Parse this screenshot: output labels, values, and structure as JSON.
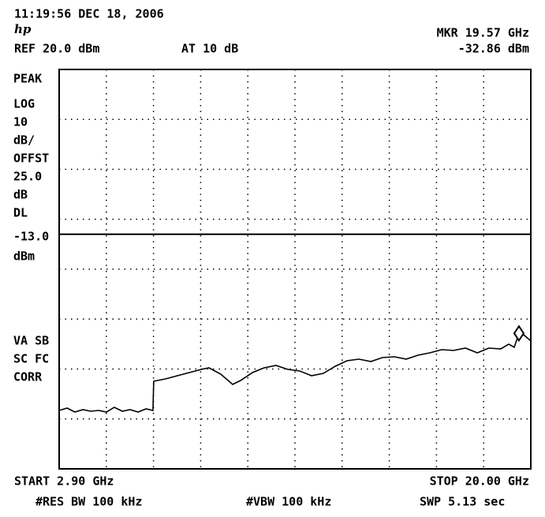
{
  "header": {
    "timestamp": "11:19:56 DEC 18, 2006",
    "logo": "hp",
    "marker_freq": "MKR 19.57 GHz",
    "ref_level": "REF 20.0 dBm",
    "attenuation": "AT 10 dB",
    "marker_level": "-32.86 dBm"
  },
  "side_labels": [
    "PEAK",
    "LOG",
    "10",
    "dB/",
    "OFFST",
    "25.0",
    "dB",
    "DL",
    "-13.0",
    "dBm",
    "VA SB",
    "SC FC",
    "CORR"
  ],
  "footer": {
    "start": "START 2.90 GHz",
    "stop": "STOP 20.00 GHz",
    "rbw": "#RES BW 100 kHz",
    "vbw": "#VBW 100 kHz",
    "sweep": "SWP 5.13  sec"
  },
  "chart_data": {
    "type": "line",
    "color": "#000000",
    "xlim": [
      2.9,
      20.0
    ],
    "ylim": [
      -60,
      20
    ],
    "x": [
      2.9,
      3.19,
      3.47,
      3.76,
      4.04,
      4.33,
      4.62,
      4.9,
      5.19,
      5.47,
      5.76,
      6.05,
      6.3,
      6.33,
      6.76,
      7.19,
      7.62,
      8.05,
      8.33,
      8.76,
      9.19,
      9.48,
      9.91,
      10.33,
      10.76,
      11.19,
      11.62,
      12.05,
      12.48,
      12.91,
      13.34,
      13.77,
      14.2,
      14.62,
      15.05,
      15.48,
      15.91,
      16.34,
      16.77,
      17.2,
      17.63,
      18.06,
      18.48,
      18.91,
      19.2,
      19.4,
      19.57,
      19.77,
      20.0
    ],
    "values": [
      -48.3,
      -47.83,
      -48.62,
      -48.14,
      -48.46,
      -48.3,
      -48.62,
      -47.67,
      -48.46,
      -48.14,
      -48.62,
      -47.98,
      -48.3,
      -42.45,
      -41.98,
      -41.34,
      -40.71,
      -40.08,
      -39.76,
      -41.03,
      -43.08,
      -42.29,
      -40.71,
      -39.76,
      -39.29,
      -40.08,
      -40.4,
      -41.34,
      -40.87,
      -39.45,
      -38.34,
      -38.02,
      -38.5,
      -37.71,
      -37.55,
      -38.02,
      -37.23,
      -36.76,
      -36.13,
      -36.28,
      -35.81,
      -36.76,
      -35.81,
      -35.97,
      -35.02,
      -35.65,
      -32.86,
      -33.28,
      -34.39
    ],
    "display_line": -13,
    "marker": {
      "x": 19.57,
      "value": -32.86
    }
  }
}
